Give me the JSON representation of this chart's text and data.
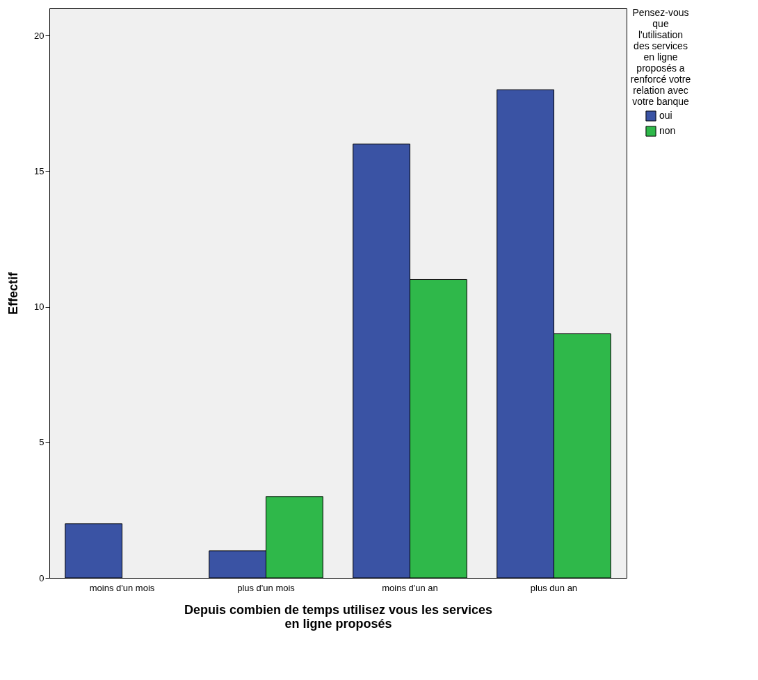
{
  "chart_data": {
    "type": "bar",
    "xlabel": "Depuis combien de temps utilisez vous les services en ligne proposés",
    "ylabel": "Effectif",
    "legend_title": "Pensez-vous que l'utilisation des services en ligne proposés a renforcé votre relation avec votre banque",
    "categories": [
      "moins d'un mois",
      "plus d'un mois",
      "moins d'un an",
      "plus dun an"
    ],
    "series": [
      {
        "name": "oui",
        "color": "#3a53a4",
        "values": [
          2,
          1,
          16,
          18
        ]
      },
      {
        "name": "non",
        "color": "#2fb84a",
        "values": [
          0,
          3,
          11,
          9
        ]
      }
    ],
    "ylim": [
      0,
      21
    ],
    "yticks": [
      0,
      5,
      10,
      15,
      20
    ],
    "grid": false,
    "legend": "right"
  }
}
